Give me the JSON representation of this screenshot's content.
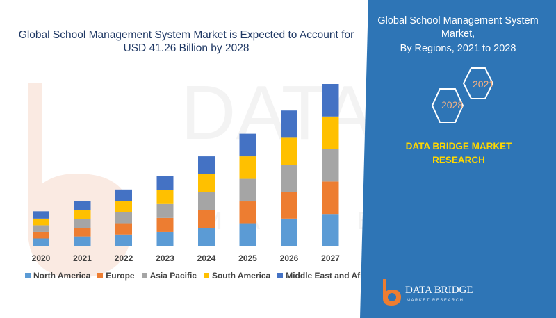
{
  "title_line1": "Global School Management System Market is Expected to Account for",
  "title_line2": "USD 41.26 Billion by 2028",
  "side": {
    "title_line1": "Global School Management System",
    "title_line2": "Market,",
    "title_line3": "By Regions, 2021 to 2028",
    "hex_year_a": "2021",
    "hex_year_b": "2028",
    "brand_line1": "DATA BRIDGE MARKET",
    "brand_line2": "RESEARCH",
    "background_color": "#2e75b6"
  },
  "logo": {
    "name": "DATA BRIDGE",
    "tagline": "MARKET RESEARCH"
  },
  "chart_data": {
    "type": "bar",
    "stacked": true,
    "categories": [
      "2020",
      "2021",
      "2022",
      "2023",
      "2024",
      "2025",
      "2026",
      "2027"
    ],
    "series": [
      {
        "name": "North America",
        "color": "#5b9bd5",
        "values": [
          5.5,
          7.0,
          8.5,
          10.5,
          13.5,
          17.0,
          20.5,
          24.0
        ]
      },
      {
        "name": "Europe",
        "color": "#ed7d31",
        "values": [
          5.0,
          6.5,
          8.5,
          10.5,
          13.5,
          16.5,
          20.0,
          24.5
        ]
      },
      {
        "name": "Asia Pacific",
        "color": "#a5a5a5",
        "values": [
          5.0,
          6.5,
          8.5,
          10.5,
          13.5,
          17.0,
          20.5,
          24.5
        ]
      },
      {
        "name": "South America",
        "color": "#ffc000",
        "values": [
          5.0,
          7.0,
          8.5,
          10.5,
          13.5,
          17.0,
          20.5,
          24.5
        ]
      },
      {
        "name": "Middle East and Africa",
        "color": "#4472c4",
        "values": [
          5.5,
          7.0,
          8.5,
          10.5,
          13.5,
          17.0,
          20.5,
          24.5
        ]
      }
    ],
    "legend_position": "bottom",
    "grid": false
  }
}
